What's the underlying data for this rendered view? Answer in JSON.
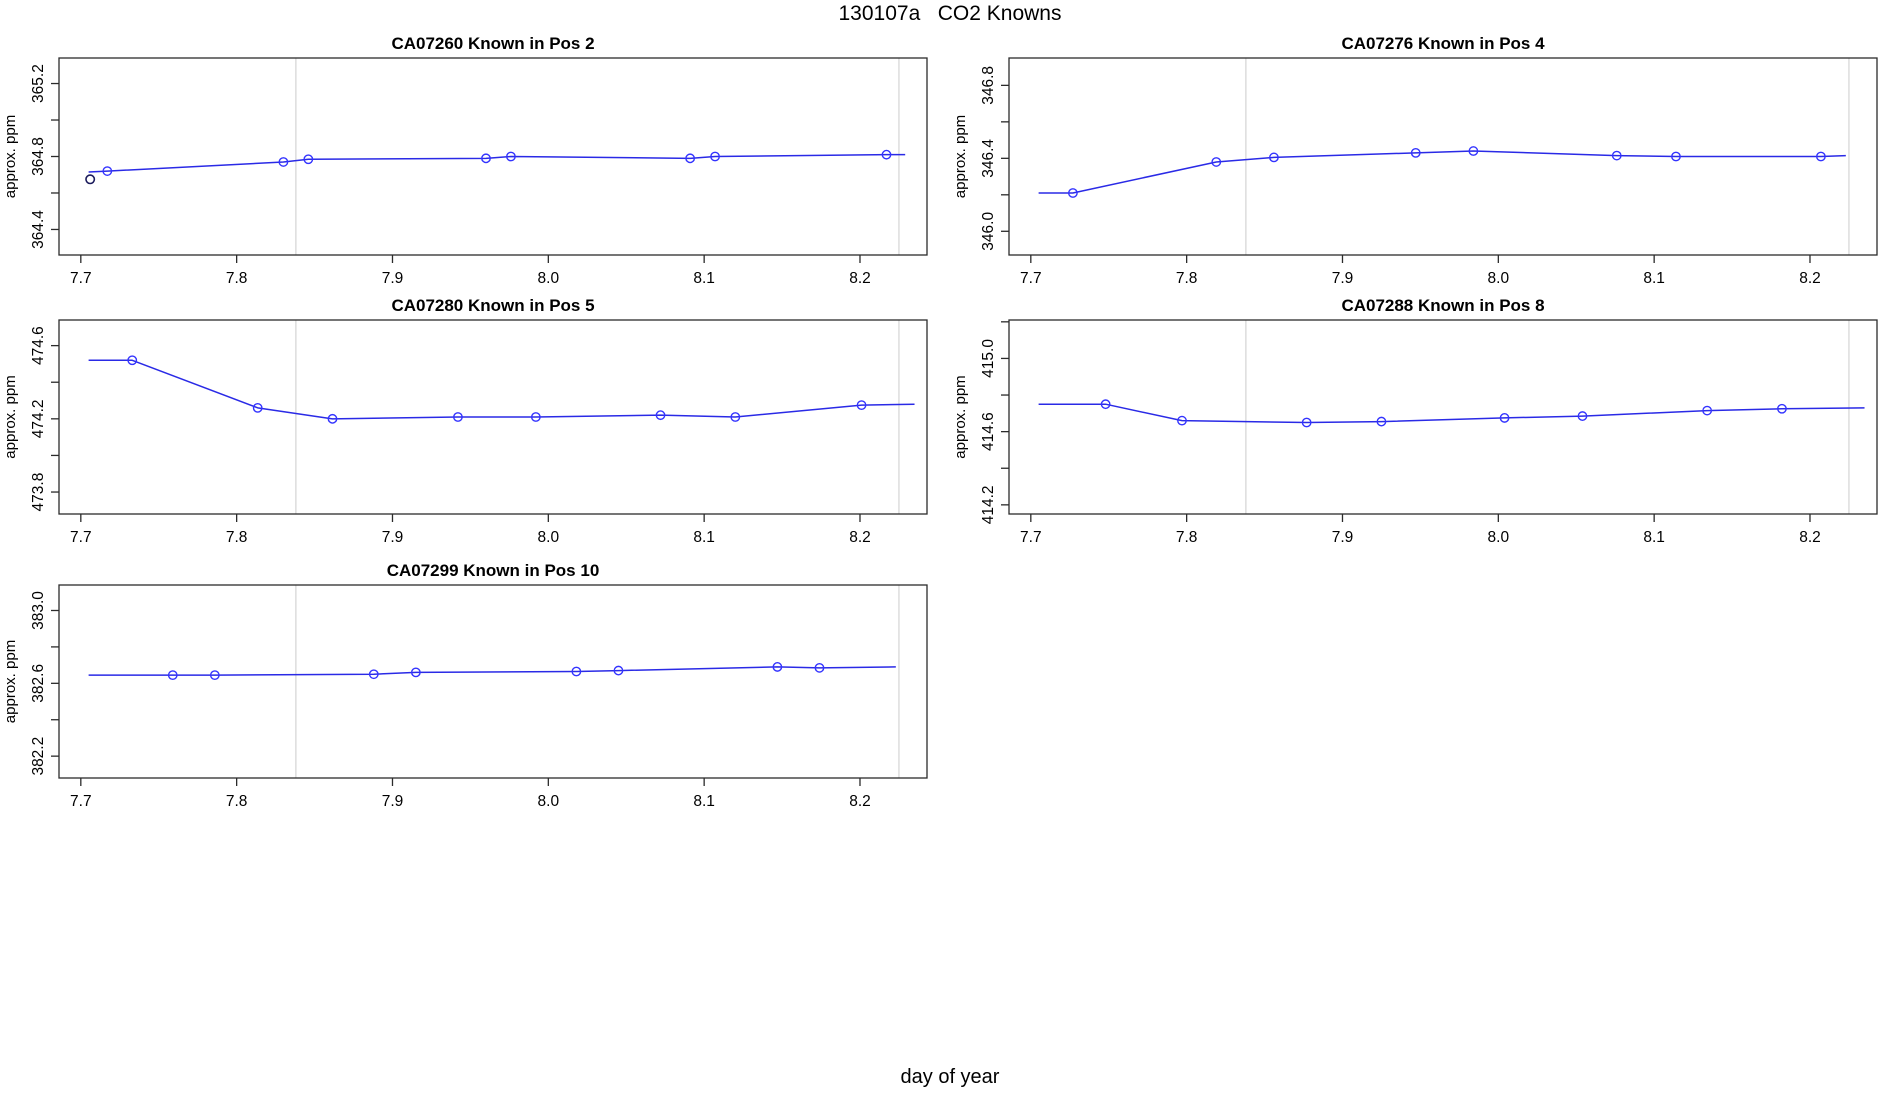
{
  "title": "130107a   CO2 Knowns",
  "xlabel": "day of year",
  "colors": {
    "line": "#2a2ae6",
    "marker": "#3333ff",
    "outlier_marker": "#1b1b5c",
    "gridline": "#d4d4d4",
    "axis": "#2b2b2b",
    "text": "#000000",
    "background": "#ffffff"
  },
  "chart_data": [
    {
      "type": "line",
      "id": "CA07260",
      "pos_label": "Known in Pos 2",
      "title": "CA07260    Known in Pos 2",
      "ylabel": "approx. ppm",
      "xlim": [
        7.686,
        8.243
      ],
      "ylim": [
        364.26,
        365.34
      ],
      "xticks": [
        7.7,
        7.8,
        7.9,
        8.0,
        8.1,
        8.2
      ],
      "xtick_labels": [
        "7.7",
        "7.8",
        "7.9",
        "8.0",
        "8.1",
        "8.2"
      ],
      "yticks_all": [
        364.4,
        364.6,
        364.8,
        365.0,
        365.2
      ],
      "yticks_labeled": [
        364.4,
        364.8,
        365.2
      ],
      "ytick_labels": [
        "364.4",
        "364.8",
        "365.2"
      ],
      "vlines": [
        7.838,
        8.225
      ],
      "line": {
        "x": [
          7.705,
          7.717,
          7.83,
          7.846,
          7.96,
          7.976,
          8.091,
          8.107,
          8.217,
          8.229
        ],
        "y": [
          364.715,
          364.72,
          364.77,
          364.785,
          364.79,
          364.8,
          364.79,
          364.8,
          364.81,
          364.81
        ]
      },
      "markers": {
        "x": [
          7.717,
          7.83,
          7.846,
          7.96,
          7.976,
          8.091,
          8.107,
          8.217
        ],
        "y": [
          364.72,
          364.77,
          364.785,
          364.79,
          364.8,
          364.79,
          364.8,
          364.81
        ]
      },
      "outlier": {
        "x": 7.706,
        "y": 364.675
      }
    },
    {
      "type": "line",
      "id": "CA07276",
      "pos_label": "Known in Pos 4",
      "title": "CA07276    Known in Pos 4",
      "ylabel": "approx. ppm",
      "xlim": [
        7.686,
        8.243
      ],
      "ylim": [
        345.87,
        346.95
      ],
      "xticks": [
        7.7,
        7.8,
        7.9,
        8.0,
        8.1,
        8.2
      ],
      "xtick_labels": [
        "7.7",
        "7.8",
        "7.9",
        "8.0",
        "8.1",
        "8.2"
      ],
      "yticks_all": [
        346.0,
        346.2,
        346.4,
        346.6,
        346.8
      ],
      "yticks_labeled": [
        346.0,
        346.4,
        346.8
      ],
      "ytick_labels": [
        "346.0",
        "346.4",
        "346.8"
      ],
      "vlines": [
        7.838,
        8.225
      ],
      "line": {
        "x": [
          7.705,
          7.727,
          7.819,
          7.856,
          7.947,
          7.984,
          8.076,
          8.114,
          8.207,
          8.223
        ],
        "y": [
          346.21,
          346.21,
          346.38,
          346.405,
          346.43,
          346.44,
          346.415,
          346.41,
          346.41,
          346.415
        ]
      },
      "markers": {
        "x": [
          7.727,
          7.819,
          7.856,
          7.947,
          7.984,
          8.076,
          8.114,
          8.207
        ],
        "y": [
          346.21,
          346.38,
          346.405,
          346.43,
          346.44,
          346.415,
          346.41,
          346.41
        ]
      }
    },
    {
      "type": "line",
      "id": "CA07280",
      "pos_label": "Known in Pos 5",
      "title": "CA07280    Known in Pos 5",
      "ylabel": "approx. ppm",
      "xlim": [
        7.686,
        8.243
      ],
      "ylim": [
        473.68,
        474.74
      ],
      "xticks": [
        7.7,
        7.8,
        7.9,
        8.0,
        8.1,
        8.2
      ],
      "xtick_labels": [
        "7.7",
        "7.8",
        "7.9",
        "8.0",
        "8.1",
        "8.2"
      ],
      "yticks_all": [
        473.8,
        474.0,
        474.2,
        474.4,
        474.6
      ],
      "yticks_labeled": [
        473.8,
        474.2,
        474.6
      ],
      "ytick_labels": [
        "473.8",
        "474.2",
        "474.6"
      ],
      "vlines": [
        7.838,
        8.225
      ],
      "line": {
        "x": [
          7.705,
          7.733,
          7.8135,
          7.8615,
          7.942,
          7.992,
          8.072,
          8.12,
          8.201,
          8.235
        ],
        "y": [
          474.52,
          474.52,
          474.26,
          474.2,
          474.21,
          474.21,
          474.22,
          474.21,
          474.275,
          474.28
        ]
      },
      "markers": {
        "x": [
          7.733,
          7.8135,
          7.8615,
          7.942,
          7.992,
          8.072,
          8.12,
          8.201
        ],
        "y": [
          474.52,
          474.26,
          474.2,
          474.21,
          474.21,
          474.22,
          474.21,
          474.275
        ]
      }
    },
    {
      "type": "line",
      "id": "CA07288",
      "pos_label": "Known in Pos 8",
      "title": "CA07288    Known in Pos 8",
      "ylabel": "approx. ppm",
      "xlim": [
        7.686,
        8.243
      ],
      "ylim": [
        414.15,
        415.21
      ],
      "xticks": [
        7.7,
        7.8,
        7.9,
        8.0,
        8.1,
        8.2
      ],
      "xtick_labels": [
        "7.7",
        "7.8",
        "7.9",
        "8.0",
        "8.1",
        "8.2"
      ],
      "yticks_all": [
        414.2,
        414.4,
        414.6,
        414.8,
        415.0,
        415.2
      ],
      "yticks_labeled": [
        414.2,
        414.6,
        415.0
      ],
      "ytick_labels": [
        "414.2",
        "414.6",
        "415.0"
      ],
      "vlines": [
        7.838,
        8.225
      ],
      "line": {
        "x": [
          7.705,
          7.748,
          7.797,
          7.877,
          7.925,
          8.004,
          8.054,
          8.134,
          8.182,
          8.235
        ],
        "y": [
          414.75,
          414.75,
          414.66,
          414.65,
          414.655,
          414.675,
          414.685,
          414.715,
          414.725,
          414.73
        ]
      },
      "markers": {
        "x": [
          7.748,
          7.797,
          7.877,
          7.925,
          8.004,
          8.054,
          8.134,
          8.182
        ],
        "y": [
          414.75,
          414.66,
          414.65,
          414.655,
          414.675,
          414.685,
          414.715,
          414.725
        ]
      }
    },
    {
      "type": "line",
      "id": "CA07299",
      "pos_label": "Known in Pos 10",
      "title": "CA07299    Known in Pos 10",
      "ylabel": "approx. ppm",
      "xlim": [
        7.686,
        8.243
      ],
      "ylim": [
        382.08,
        383.14
      ],
      "xticks": [
        7.7,
        7.8,
        7.9,
        8.0,
        8.1,
        8.2
      ],
      "xtick_labels": [
        "7.7",
        "7.8",
        "7.9",
        "8.0",
        "8.1",
        "8.2"
      ],
      "yticks_all": [
        382.2,
        382.4,
        382.6,
        382.8,
        383.0
      ],
      "yticks_labeled": [
        382.2,
        382.6,
        383.0
      ],
      "ytick_labels": [
        "382.2",
        "382.6",
        "383.0"
      ],
      "vlines": [
        7.838,
        8.225
      ],
      "line": {
        "x": [
          7.705,
          7.759,
          7.786,
          7.888,
          7.915,
          8.018,
          8.045,
          8.147,
          8.174,
          8.223
        ],
        "y": [
          382.645,
          382.645,
          382.645,
          382.65,
          382.66,
          382.665,
          382.67,
          382.69,
          382.685,
          382.69
        ]
      },
      "markers": {
        "x": [
          7.759,
          7.786,
          7.888,
          7.915,
          8.018,
          8.045,
          8.147,
          8.174
        ],
        "y": [
          382.645,
          382.645,
          382.65,
          382.66,
          382.665,
          382.67,
          382.69,
          382.685
        ]
      }
    }
  ]
}
